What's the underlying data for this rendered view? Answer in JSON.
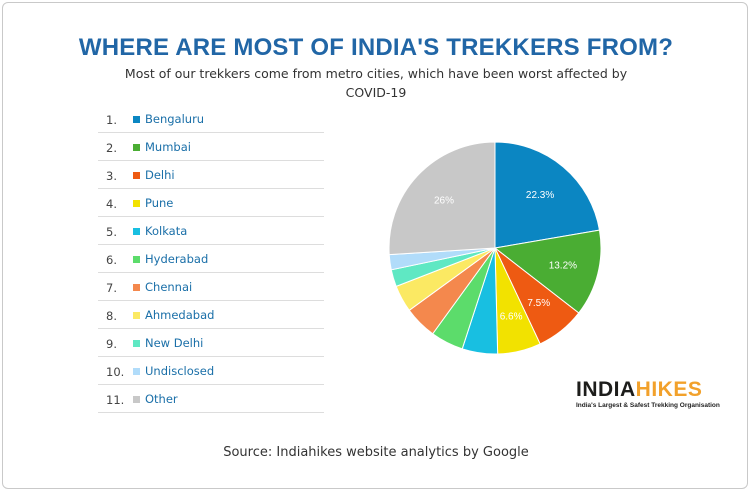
{
  "title": "WHERE ARE MOST OF INDIA'S TREKKERS FROM?",
  "subtitle": "Most of our trekkers come from metro cities, which have been worst affected by COVID-19",
  "source": "Source: Indiahikes website analytics by Google",
  "logo": {
    "part1": "INDIA",
    "part2": "HIKES",
    "tagline": "India's Largest & Safest Trekking Organisation"
  },
  "chart_data": {
    "type": "pie",
    "categories": [
      "Bengaluru",
      "Mumbai",
      "Delhi",
      "Pune",
      "Kolkata",
      "Hyderabad",
      "Chennai",
      "Ahmedabad",
      "New Delhi",
      "Undisclosed",
      "Other"
    ],
    "ranks": [
      "1.",
      "2.",
      "3.",
      "4.",
      "5.",
      "6.",
      "7.",
      "8.",
      "9.",
      "10.",
      "11."
    ],
    "values": [
      22.3,
      13.2,
      7.5,
      6.6,
      5.4,
      5.0,
      5.0,
      4.1,
      2.6,
      2.3,
      26
    ],
    "labels": [
      "22.3%",
      "13.2%",
      "7.5%",
      "6.6%",
      "",
      "",
      "",
      "",
      "",
      "",
      "26%"
    ],
    "colors": [
      "#0b86c2",
      "#4aad33",
      "#ee5a12",
      "#f2e200",
      "#18bfe1",
      "#5cdc6b",
      "#f4884d",
      "#fbe963",
      "#5fe8c3",
      "#b1dcfa",
      "#c8c8c8"
    ],
    "legend_position": "left"
  }
}
